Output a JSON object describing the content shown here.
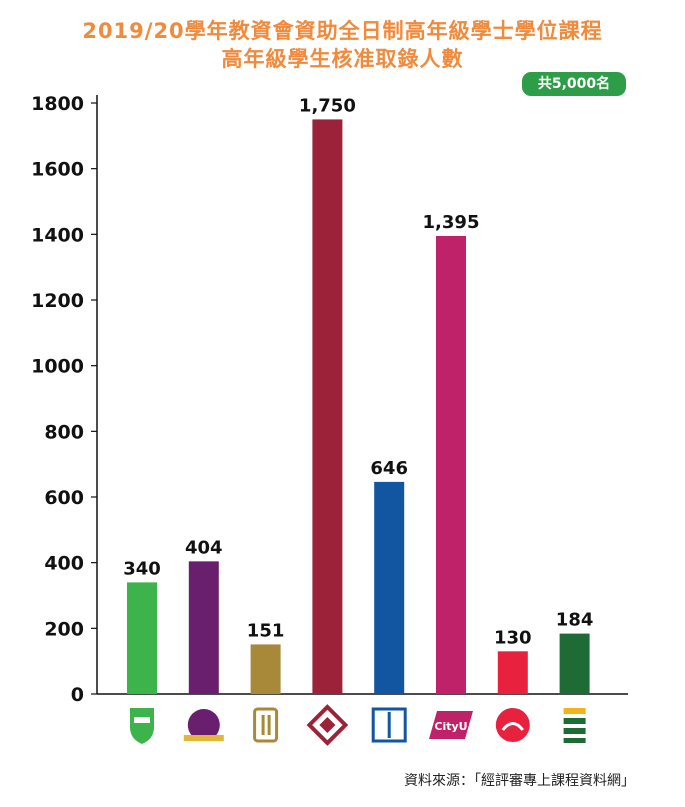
{
  "title_line1": "2019/20學年教資會資助全日制高年級學士學位課程",
  "title_line2": "高年級學生核准取錄人數",
  "total_badge": "共5,000名",
  "source_note": "資料來源：「經評審專上課程資料網」",
  "chart_data": {
    "type": "bar",
    "title": "2019/20學年教資會資助全日制高年級學士學位課程高年級學生核准取錄人數",
    "categories": [
      "HKU",
      "CUHK",
      "HKUST",
      "PolyU",
      "EdUHK",
      "CityU",
      "LingnanU",
      "HKBU"
    ],
    "category_icons": [
      "hku-crest-icon",
      "cuhk-crest-icon",
      "hkust-logo-icon",
      "polyu-logo-icon",
      "edu-book-icon",
      "cityu-logo-icon",
      "lingnan-logo-icon",
      "hkbu-logo-icon"
    ],
    "values": [
      340,
      404,
      151,
      1750,
      646,
      1395,
      130,
      184
    ],
    "value_labels": [
      "340",
      "404",
      "151",
      "1,750",
      "646",
      "1,395",
      "130",
      "184"
    ],
    "colors": [
      "#3cb44b",
      "#6a1f6e",
      "#a8893a",
      "#9b2238",
      "#1255a0",
      "#c0226a",
      "#e8213f",
      "#1f6b35"
    ],
    "ylim": [
      0,
      1800
    ],
    "yticks": [
      0,
      200,
      400,
      600,
      800,
      1000,
      1200,
      1400,
      1600,
      1800
    ],
    "ytick_labels": [
      "0",
      "200",
      "400",
      "600",
      "800",
      "1000",
      "1200",
      "1400",
      "1600",
      "1800"
    ],
    "grid": false,
    "xlabel": "",
    "ylabel": ""
  }
}
